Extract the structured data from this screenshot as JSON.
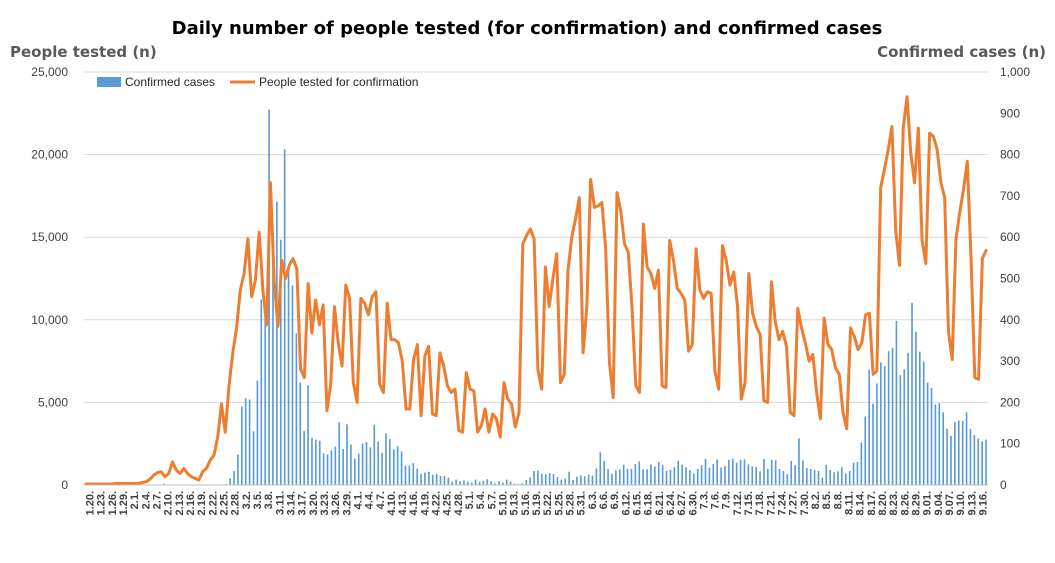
{
  "chart_data": {
    "type": "bar+line",
    "title": "Daily number of people tested (for confirmation) and confirmed cases",
    "ylabel_left": "People tested (n)",
    "ylabel_right": "Confirmed cases (n)",
    "ylim_left": [
      0,
      25000
    ],
    "ylim_right": [
      0,
      1000
    ],
    "yticks_left": [
      "0",
      "5,000",
      "10,000",
      "15,000",
      "20,000",
      "25,000"
    ],
    "yticks_right": [
      "0",
      "100",
      "200",
      "300",
      "400",
      "500",
      "600",
      "700",
      "800",
      "900",
      "1,000"
    ],
    "grid": true,
    "legend_position": "top-left",
    "colors": {
      "bars": "#5b9bd5",
      "line": "#ed7d31",
      "grid": "#d9d9d9"
    },
    "x_tick_labels": [
      "1.20.",
      "1.23.",
      "1.26.",
      "1.29.",
      "2.1.",
      "2.4.",
      "2.7.",
      "2.10.",
      "2.13.",
      "2.16.",
      "2.19.",
      "2.22.",
      "2.25.",
      "2.28.",
      "3.2.",
      "3.5.",
      "3.8.",
      "3.11.",
      "3.14.",
      "3.17.",
      "3.20.",
      "3.23.",
      "3.26.",
      "3.29.",
      "4.1.",
      "4.4.",
      "4.7.",
      "4.10.",
      "4.13.",
      "4.16.",
      "4.19.",
      "4.22.",
      "4.25.",
      "4.28.",
      "5.1.",
      "5.4.",
      "5.7.",
      "5.10.",
      "5.13.",
      "5.16.",
      "5.19.",
      "5.22.",
      "5.25.",
      "5.28.",
      "5.31.",
      "6.3.",
      "6.6.",
      "6.9.",
      "6.12.",
      "6.15.",
      "6.18.",
      "6.21.",
      "6.24.",
      "6.27.",
      "6.30.",
      "7.3.",
      "7.6.",
      "7.9.",
      "7.12.",
      "7.15.",
      "7.18.",
      "7.21.",
      "7.24.",
      "7.27.",
      "7.30.",
      "8.2.",
      "8.5.",
      "8.8.",
      "8.11.",
      "8.14.",
      "8.17.",
      "8.20.",
      "8.23.",
      "8.26.",
      "8.29.",
      "9.01.",
      "9.04.",
      "9.07.",
      "9.10.",
      "9.13.",
      "9.16."
    ],
    "series": [
      {
        "name": "Confirmed cases",
        "type": "bar",
        "axis": "right",
        "values": [
          1,
          0,
          0,
          1,
          0,
          0,
          1,
          0,
          0,
          0,
          1,
          1,
          0,
          2,
          0,
          1,
          0,
          1,
          0,
          0,
          3,
          0,
          0,
          0,
          0,
          0,
          0,
          0,
          0,
          0,
          0,
          0,
          1,
          0,
          0,
          1,
          2,
          16,
          34,
          74,
          190,
          210,
          207,
          130,
          253,
          449,
          427,
          909,
          595,
          686,
          594,
          813,
          518,
          483,
          367,
          248,
          131,
          242,
          114,
          110,
          107,
          76,
          74,
          84,
          93,
          152,
          87,
          147,
          98,
          64,
          76,
          100,
          104,
          91,
          146,
          105,
          78,
          125,
          111,
          86,
          94,
          81,
          47,
          47,
          53,
          39,
          27,
          30,
          32,
          25,
          27,
          22,
          22,
          18,
          8,
          13,
          9,
          11,
          8,
          6,
          13,
          8,
          10,
          14,
          9,
          4,
          9,
          6,
          13,
          8,
          3,
          2,
          4,
          12,
          18,
          34,
          35,
          27,
          26,
          29,
          27,
          19,
          13,
          15,
          32,
          12,
          20,
          23,
          21,
          25,
          23,
          40,
          79,
          58,
          39,
          27,
          35,
          38,
          49,
          39,
          39,
          51,
          57,
          38,
          38,
          50,
          45,
          56,
          48,
          34,
          37,
          43,
          59,
          49,
          43,
          36,
          28,
          39,
          48,
          63,
          42,
          51,
          62,
          42,
          46,
          61,
          63,
          54,
          61,
          62,
          50,
          45,
          44,
          33,
          63,
          39,
          61,
          60,
          39,
          34,
          26,
          58,
          48,
          113,
          59,
          41,
          39,
          36,
          34,
          18,
          49,
          36,
          31,
          33,
          43,
          28,
          34,
          54,
          56,
          103,
          166,
          279,
          197,
          246,
          297,
          288,
          324,
          332,
          397,
          266,
          280,
          320,
          441,
          371,
          323,
          299,
          248,
          235,
          195,
          198,
          176,
          136,
          119,
          152,
          156,
          155,
          176,
          136,
          121,
          113,
          106,
          110
        ]
      },
      {
        "name": "People tested for confirmation",
        "type": "line",
        "axis": "left",
        "values": [
          60,
          60,
          60,
          60,
          60,
          60,
          60,
          60,
          90,
          90,
          90,
          90,
          90,
          90,
          100,
          150,
          200,
          350,
          600,
          750,
          800,
          500,
          700,
          1400,
          900,
          700,
          1000,
          700,
          500,
          400,
          300,
          800,
          1000,
          1500,
          1800,
          2900,
          4900,
          3200,
          6000,
          8000,
          9500,
          11800,
          12800,
          14900,
          11400,
          12400,
          15300,
          11800,
          9700,
          18300,
          12300,
          9600,
          13600,
          12500,
          13300,
          13700,
          13100,
          7000,
          6500,
          12200,
          9200,
          11200,
          9700,
          10900,
          4500,
          6100,
          10800,
          8600,
          7200,
          12100,
          11300,
          6200,
          5000,
          11300,
          11000,
          10300,
          11400,
          11700,
          6100,
          5600,
          11000,
          8800,
          8800,
          8600,
          7500,
          4600,
          4600,
          7600,
          8500,
          4200,
          7800,
          8400,
          4300,
          4200,
          8000,
          7200,
          6000,
          5600,
          5800,
          3300,
          3200,
          6800,
          5800,
          5700,
          3200,
          3600,
          4600,
          3200,
          4300,
          4000,
          2900,
          6200,
          5200,
          4900,
          3500,
          4400,
          14600,
          15100,
          15500,
          14900,
          7000,
          5800,
          13200,
          10800,
          12500,
          14000,
          6200,
          6700,
          13000,
          15000,
          16100,
          17400,
          8000,
          10800,
          18500,
          16800,
          16900,
          17100,
          14300,
          7400,
          5300,
          17700,
          16600,
          14600,
          14100,
          10700,
          6000,
          5600,
          15800,
          13200,
          12800,
          11900,
          13000,
          6000,
          5900,
          14800,
          13600,
          11900,
          11600,
          11200,
          8100,
          8500,
          14300,
          11800,
          11300,
          11700,
          11600,
          6900,
          5800,
          14500,
          13600,
          12100,
          12900,
          10800,
          5200,
          6200,
          12800,
          10400,
          9600,
          9100,
          5100,
          5000,
          12300,
          9900,
          8800,
          9300,
          8400,
          4400,
          4200,
          10700,
          9500,
          8600,
          7500,
          7900,
          5600,
          4000,
          10100,
          8500,
          8200,
          7100,
          6700,
          4400,
          3400,
          9500,
          9000,
          8200,
          8600,
          10300,
          10400,
          6700,
          6900,
          18000,
          19100,
          20300,
          21700,
          15400,
          13300,
          21600,
          23500,
          20100,
          18300,
          21600,
          14800,
          13400,
          21300,
          21100,
          20300,
          18300,
          17400,
          9300,
          7600,
          14900,
          16500,
          17900,
          19600,
          13700,
          6500,
          6400,
          13700,
          14200
        ]
      }
    ]
  }
}
